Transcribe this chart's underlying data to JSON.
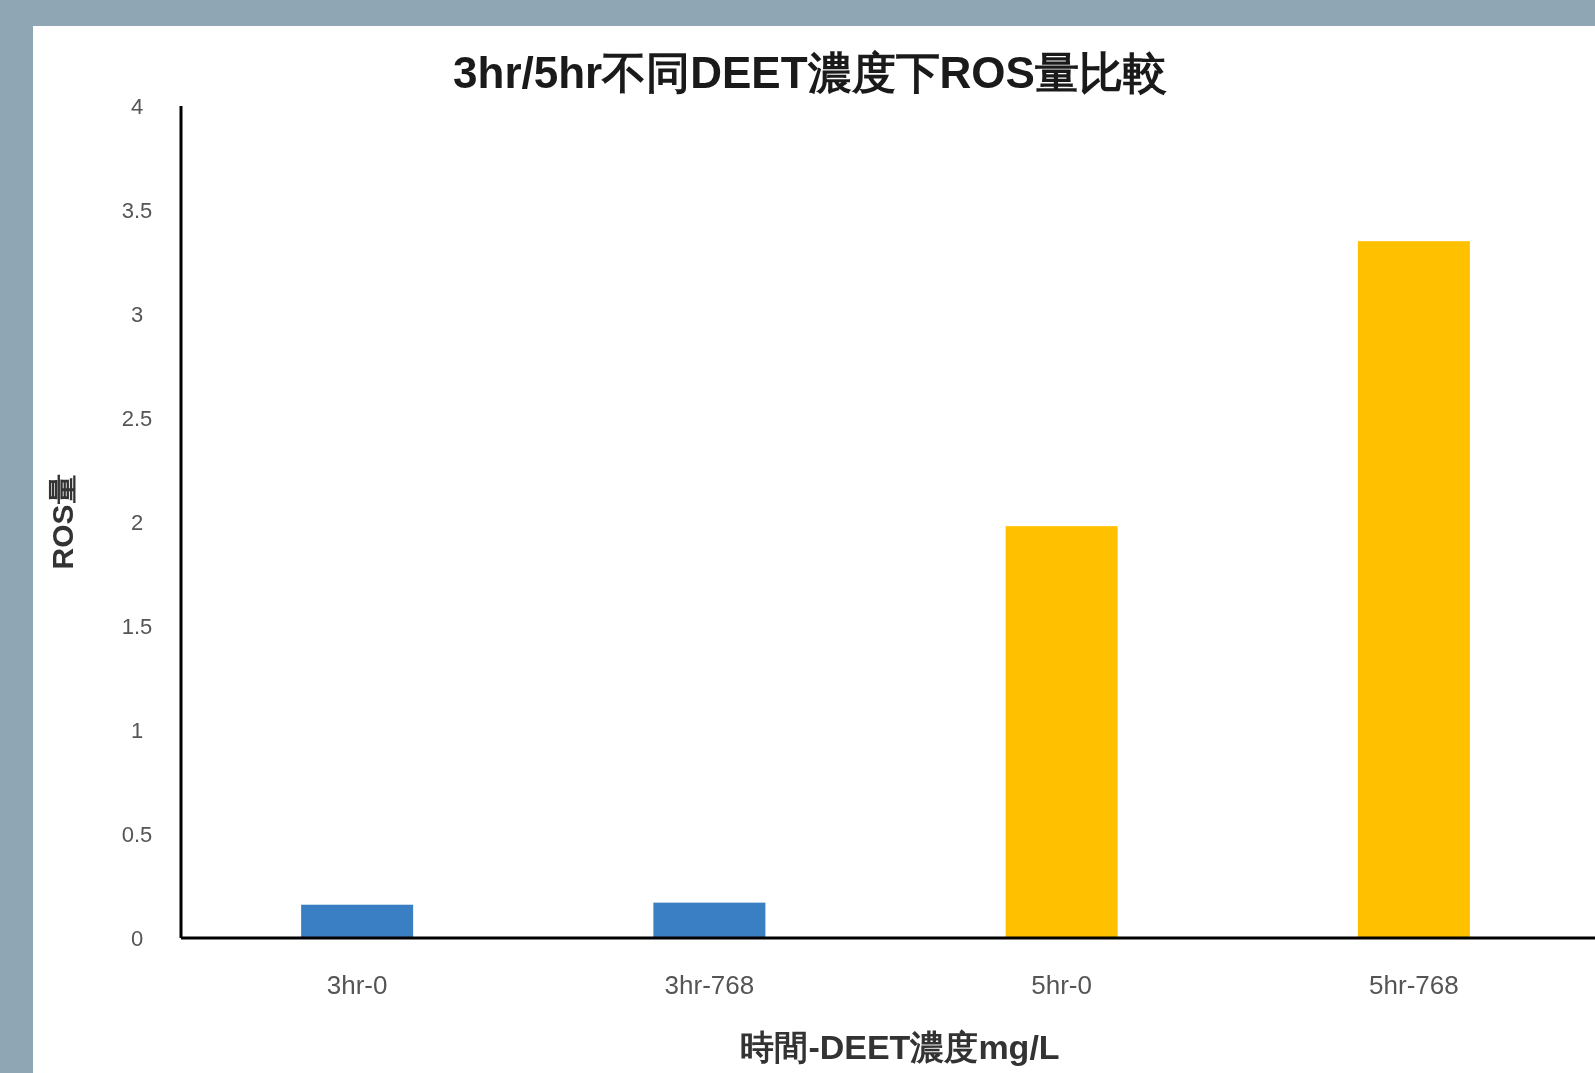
{
  "chart_data": {
    "type": "bar",
    "title": "3hr/5hr不同DEET濃度下ROS量比較",
    "xlabel": "時間-DEET濃度mg/L",
    "ylabel": "ROS量",
    "categories": [
      "3hr-0",
      "3hr-768",
      "5hr-0",
      "5hr-768"
    ],
    "values": [
      0.16,
      0.17,
      1.98,
      3.35
    ],
    "colors": [
      "#3a7fc4",
      "#3a7fc4",
      "#ffc000",
      "#ffc000"
    ],
    "ylim": [
      0,
      4
    ],
    "yticks": [
      0,
      0.5,
      1,
      1.5,
      2,
      2.5,
      3,
      3.5,
      4
    ]
  }
}
